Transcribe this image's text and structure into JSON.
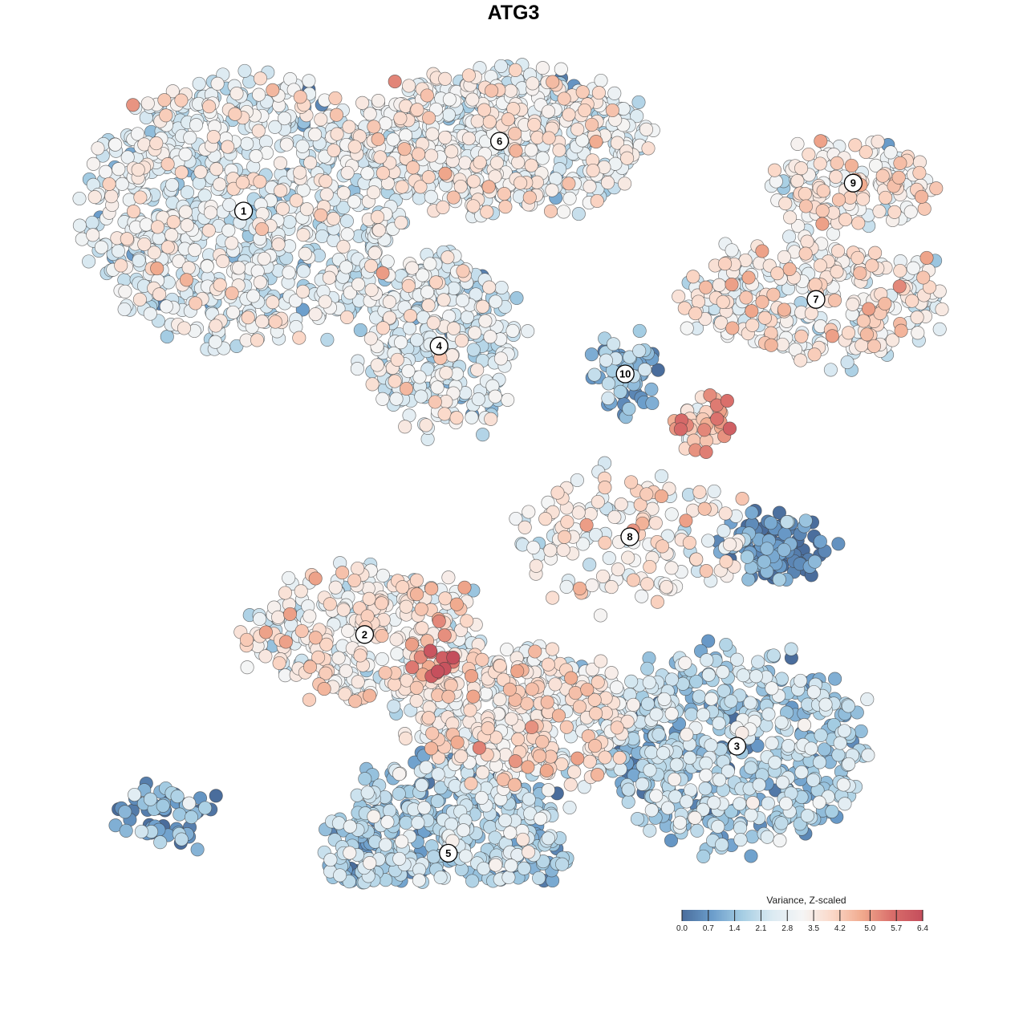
{
  "title": "ATG3",
  "chart_data": {
    "type": "scatter",
    "title": "ATG3",
    "xlabel": "",
    "ylabel": "",
    "grid": false,
    "axes_visible": false,
    "legend": {
      "title": "Variance, Z-scaled",
      "type": "colorbar",
      "placement": "bottom-right",
      "range": [
        0.0,
        6.4
      ],
      "ticks": [
        "0.0",
        "0.7",
        "1.4",
        "2.1",
        "2.8",
        "3.5",
        "4.2",
        "5.0",
        "5.7",
        "6.4"
      ],
      "palette": [
        "#4a6d9c",
        "#6b9dcb",
        "#a5cde3",
        "#dbeaf2",
        "#f5f5f5",
        "#fbd8c8",
        "#f0a98d",
        "#d96d6a",
        "#c44e5c"
      ]
    },
    "clusters": [
      {
        "label": "1",
        "x": -5.8,
        "y": 6.5,
        "level": 2.6,
        "spread_x": 3.4,
        "spread_y": 2.9,
        "n": 900
      },
      {
        "label": "2",
        "x": -3.2,
        "y": -2.6,
        "level": 3.2,
        "spread_x": 2.6,
        "spread_y": 1.4,
        "n": 330
      },
      {
        "label": "3",
        "x": 4.8,
        "y": -5.0,
        "level": 1.7,
        "spread_x": 2.8,
        "spread_y": 2.1,
        "n": 560
      },
      {
        "label": "4",
        "x": -1.6,
        "y": 3.6,
        "level": 2.5,
        "spread_x": 1.6,
        "spread_y": 1.9,
        "n": 330
      },
      {
        "label": "5",
        "x": -1.4,
        "y": -7.3,
        "level": 1.6,
        "spread_x": 2.6,
        "spread_y": 2.0,
        "n": 700
      },
      {
        "label": "6",
        "x": -0.3,
        "y": 8.0,
        "level": 2.8,
        "spread_x": 3.2,
        "spread_y": 1.5,
        "n": 650
      },
      {
        "label": "7",
        "x": 6.5,
        "y": 4.6,
        "level": 3.2,
        "spread_x": 2.9,
        "spread_y": 1.2,
        "n": 320
      },
      {
        "label": "8",
        "x": 2.5,
        "y": -0.5,
        "level": 3.3,
        "spread_x": 2.4,
        "spread_y": 1.4,
        "n": 150
      },
      {
        "label": "9",
        "x": 7.3,
        "y": 7.1,
        "level": 3.3,
        "spread_x": 1.7,
        "spread_y": 0.9,
        "n": 160
      },
      {
        "label": "10",
        "x": 2.4,
        "y": 3.0,
        "level": 1.2,
        "spread_x": 0.6,
        "spread_y": 0.8,
        "n": 60
      },
      {
        "label": "",
        "x": 5.6,
        "y": -0.7,
        "level": 0.3,
        "spread_x": 1.0,
        "spread_y": 0.6,
        "n": 110
      },
      {
        "label": "",
        "x": 0.2,
        "y": -4.4,
        "level": 3.3,
        "spread_x": 2.4,
        "spread_y": 1.4,
        "n": 380
      },
      {
        "label": "",
        "x": 4.1,
        "y": 1.9,
        "level": 4.0,
        "spread_x": 0.6,
        "spread_y": 0.6,
        "n": 50
      },
      {
        "label": "",
        "x": -1.7,
        "y": -3.2,
        "level": 5.8,
        "spread_x": 0.5,
        "spread_y": 0.3,
        "n": 14
      },
      {
        "label": "",
        "x": -7.6,
        "y": -6.5,
        "level": 0.9,
        "spread_x": 1.1,
        "spread_y": 0.5,
        "n": 60
      }
    ]
  }
}
